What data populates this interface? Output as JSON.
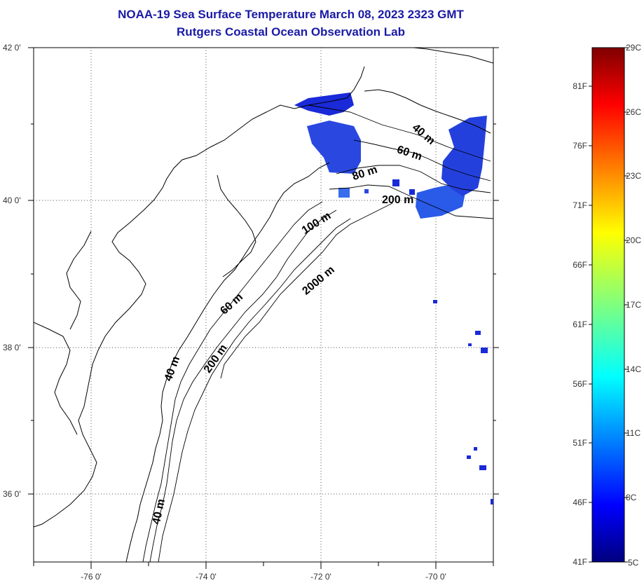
{
  "title": "NOAA-19 Sea Surface Temperature March 08, 2023 2323 GMT",
  "subtitle": "Rutgers Coastal Ocean Observation Lab",
  "colors": {
    "title": "#1a1aa6",
    "sst_cold": "#1a2ad8",
    "sst_mid": "#3a6cf0"
  },
  "map": {
    "lat_labels": [
      "42 0'",
      "40 0'",
      "38 0'",
      "36 0'"
    ],
    "lon_labels": [
      "-76 0'",
      "-74 0'",
      "-72 0'",
      "-70 0'"
    ],
    "depth_labels": [
      "40 m",
      "60 m",
      "80 m",
      "200 m",
      "100 m",
      "2000 m",
      "60 m",
      "200 m",
      "40 m",
      "40 m"
    ]
  },
  "colorbar": {
    "celsius_labels": [
      "29C",
      "26C",
      "23C",
      "20C",
      "17C",
      "14C",
      "11C",
      "8C",
      "5C"
    ],
    "fahrenheit_labels": [
      "81F",
      "76F",
      "71F",
      "66F",
      "61F",
      "56F",
      "51F",
      "46F",
      "41F"
    ]
  }
}
